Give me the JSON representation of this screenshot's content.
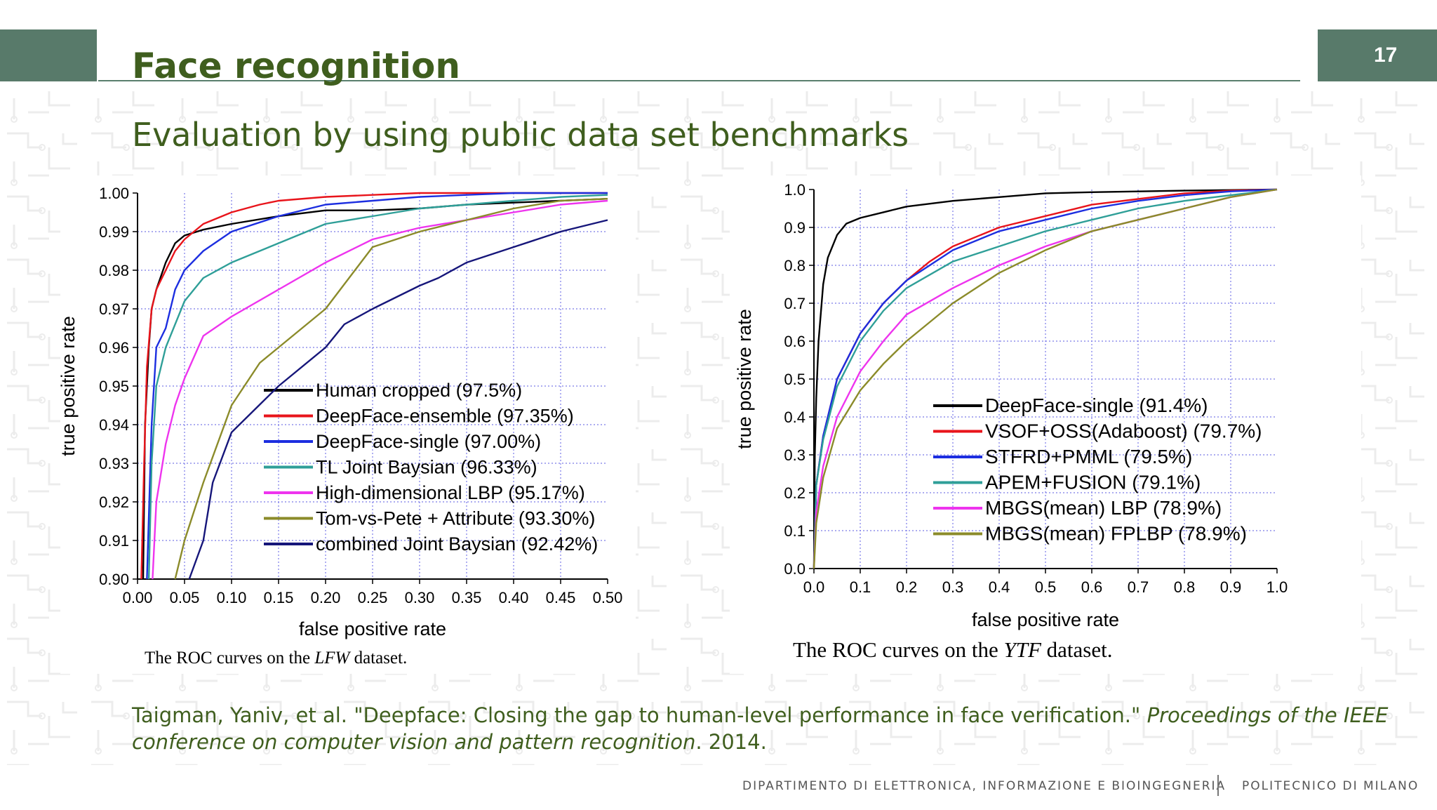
{
  "page": {
    "title": "Face recognition",
    "slide_number": "17",
    "subtitle": "Evaluation by using public data set benchmarks",
    "reference": {
      "plain": "Taigman, Yaniv, et al. \"Deepface: Closing the gap to human-level performance in face verification.\" ",
      "italic": "Proceedings of the IEEE conference on computer vision and pattern recognition",
      "tail": ". 2014."
    },
    "footer_left": "DIPARTIMENTO DI ELETTRONICA, INFORMAZIONE E BIOINGEGNERIA",
    "footer_right": "POLITECNICO DI MILANO",
    "colors": {
      "accent": "#587a6a",
      "text": "#3f5e1e"
    }
  },
  "chart_data": [
    {
      "type": "line",
      "caption_pre": "The ROC curves on the ",
      "caption_italic": "LFW",
      "caption_post": " dataset.",
      "xlabel": "false positive rate",
      "ylabel": "true positive rate",
      "xlim": [
        0,
        0.5
      ],
      "ylim": [
        0.9,
        1.0
      ],
      "xticks": [
        "0.00",
        "0.05",
        "0.10",
        "0.15",
        "0.20",
        "0.25",
        "0.30",
        "0.35",
        "0.40",
        "0.45",
        "0.50"
      ],
      "yticks": [
        "0.90",
        "0.91",
        "0.92",
        "0.93",
        "0.94",
        "0.95",
        "0.96",
        "0.97",
        "0.98",
        "0.99",
        "1.00"
      ],
      "grid": true,
      "legend_position": "bottom-right",
      "series": [
        {
          "name": "Human cropped (97.5%)",
          "color": "#000000",
          "points": [
            [
              0.006,
              0.9
            ],
            [
              0.008,
              0.94
            ],
            [
              0.012,
              0.96
            ],
            [
              0.015,
              0.97
            ],
            [
              0.02,
              0.975
            ],
            [
              0.03,
              0.982
            ],
            [
              0.04,
              0.987
            ],
            [
              0.05,
              0.989
            ],
            [
              0.07,
              0.9905
            ],
            [
              0.1,
              0.992
            ],
            [
              0.15,
              0.994
            ],
            [
              0.2,
              0.9955
            ],
            [
              0.25,
              0.9955
            ],
            [
              0.3,
              0.996
            ],
            [
              0.35,
              0.997
            ],
            [
              0.4,
              0.9975
            ],
            [
              0.45,
              0.998
            ],
            [
              0.5,
              0.9985
            ]
          ]
        },
        {
          "name": "DeepFace-ensemble (97.35%)",
          "color": "#e8141b",
          "points": [
            [
              0.004,
              0.9
            ],
            [
              0.007,
              0.93
            ],
            [
              0.01,
              0.955
            ],
            [
              0.015,
              0.97
            ],
            [
              0.02,
              0.975
            ],
            [
              0.03,
              0.98
            ],
            [
              0.04,
              0.985
            ],
            [
              0.05,
              0.988
            ],
            [
              0.07,
              0.992
            ],
            [
              0.1,
              0.995
            ],
            [
              0.13,
              0.997
            ],
            [
              0.15,
              0.998
            ],
            [
              0.2,
              0.999
            ],
            [
              0.25,
              0.9995
            ],
            [
              0.3,
              1.0
            ],
            [
              0.5,
              1.0
            ]
          ]
        },
        {
          "name": "DeepFace-single (97.00%)",
          "color": "#1c2ee0",
          "points": [
            [
              0.01,
              0.9
            ],
            [
              0.015,
              0.94
            ],
            [
              0.02,
              0.96
            ],
            [
              0.03,
              0.965
            ],
            [
              0.04,
              0.975
            ],
            [
              0.05,
              0.98
            ],
            [
              0.07,
              0.985
            ],
            [
              0.1,
              0.99
            ],
            [
              0.15,
              0.994
            ],
            [
              0.2,
              0.997
            ],
            [
              0.25,
              0.998
            ],
            [
              0.3,
              0.999
            ],
            [
              0.35,
              0.9995
            ],
            [
              0.4,
              1.0
            ],
            [
              0.5,
              1.0
            ]
          ]
        },
        {
          "name": "TL Joint Baysian (96.33%)",
          "color": "#2f9f98",
          "points": [
            [
              0.012,
              0.9
            ],
            [
              0.015,
              0.93
            ],
            [
              0.02,
              0.95
            ],
            [
              0.03,
              0.96
            ],
            [
              0.05,
              0.972
            ],
            [
              0.07,
              0.978
            ],
            [
              0.1,
              0.982
            ],
            [
              0.15,
              0.987
            ],
            [
              0.2,
              0.992
            ],
            [
              0.25,
              0.994
            ],
            [
              0.3,
              0.996
            ],
            [
              0.35,
              0.997
            ],
            [
              0.4,
              0.998
            ],
            [
              0.45,
              0.999
            ],
            [
              0.5,
              0.9995
            ]
          ]
        },
        {
          "name": "High-dimensional LBP (95.17%)",
          "color": "#ee34ee",
          "points": [
            [
              0.016,
              0.9
            ],
            [
              0.02,
              0.92
            ],
            [
              0.03,
              0.935
            ],
            [
              0.04,
              0.945
            ],
            [
              0.05,
              0.952
            ],
            [
              0.07,
              0.963
            ],
            [
              0.1,
              0.968
            ],
            [
              0.15,
              0.975
            ],
            [
              0.2,
              0.982
            ],
            [
              0.25,
              0.988
            ],
            [
              0.3,
              0.991
            ],
            [
              0.35,
              0.993
            ],
            [
              0.4,
              0.995
            ],
            [
              0.45,
              0.997
            ],
            [
              0.5,
              0.998
            ]
          ]
        },
        {
          "name": "Tom-vs-Pete + Attribute (93.30%)",
          "color": "#8b8b2a",
          "points": [
            [
              0.04,
              0.9
            ],
            [
              0.05,
              0.91
            ],
            [
              0.07,
              0.925
            ],
            [
              0.1,
              0.945
            ],
            [
              0.13,
              0.956
            ],
            [
              0.15,
              0.96
            ],
            [
              0.2,
              0.97
            ],
            [
              0.25,
              0.986
            ],
            [
              0.3,
              0.99
            ],
            [
              0.35,
              0.993
            ],
            [
              0.4,
              0.996
            ],
            [
              0.45,
              0.998
            ],
            [
              0.5,
              0.9985
            ]
          ]
        },
        {
          "name": "combined Joint Baysian (92.42%)",
          "color": "#16167a",
          "points": [
            [
              0.055,
              0.9
            ],
            [
              0.07,
              0.91
            ],
            [
              0.08,
              0.925
            ],
            [
              0.1,
              0.938
            ],
            [
              0.15,
              0.95
            ],
            [
              0.2,
              0.96
            ],
            [
              0.22,
              0.966
            ],
            [
              0.25,
              0.97
            ],
            [
              0.3,
              0.976
            ],
            [
              0.32,
              0.978
            ],
            [
              0.35,
              0.982
            ],
            [
              0.4,
              0.986
            ],
            [
              0.45,
              0.99
            ],
            [
              0.5,
              0.993
            ]
          ]
        }
      ]
    },
    {
      "type": "line",
      "caption_pre": "The ROC curves on the ",
      "caption_italic": "YTF",
      "caption_post": " dataset.",
      "xlabel": "false positive rate",
      "ylabel": "true positive rate",
      "xlim": [
        0,
        1.0
      ],
      "ylim": [
        0,
        1.0
      ],
      "xticks": [
        "0.0",
        "0.1",
        "0.2",
        "0.3",
        "0.4",
        "0.5",
        "0.6",
        "0.7",
        "0.8",
        "0.9",
        "1.0"
      ],
      "yticks": [
        "0.0",
        "0.1",
        "0.2",
        "0.3",
        "0.4",
        "0.5",
        "0.6",
        "0.7",
        "0.8",
        "0.9",
        "1.0"
      ],
      "grid": true,
      "legend_position": "bottom-right",
      "series": [
        {
          "name": "DeepFace-single (91.4%)",
          "color": "#000000",
          "points": [
            [
              0,
              0
            ],
            [
              0.002,
              0.3
            ],
            [
              0.005,
              0.45
            ],
            [
              0.01,
              0.6
            ],
            [
              0.02,
              0.75
            ],
            [
              0.03,
              0.82
            ],
            [
              0.05,
              0.88
            ],
            [
              0.07,
              0.91
            ],
            [
              0.1,
              0.925
            ],
            [
              0.15,
              0.94
            ],
            [
              0.2,
              0.955
            ],
            [
              0.3,
              0.97
            ],
            [
              0.4,
              0.98
            ],
            [
              0.5,
              0.99
            ],
            [
              0.6,
              0.993
            ],
            [
              0.8,
              0.997
            ],
            [
              1.0,
              1.0
            ]
          ]
        },
        {
          "name": "VSOF+OSS(Adaboost) (79.7%)",
          "color": "#e8141b",
          "points": [
            [
              0,
              0
            ],
            [
              0.005,
              0.22
            ],
            [
              0.02,
              0.35
            ],
            [
              0.05,
              0.5
            ],
            [
              0.1,
              0.62
            ],
            [
              0.15,
              0.7
            ],
            [
              0.2,
              0.76
            ],
            [
              0.25,
              0.81
            ],
            [
              0.3,
              0.85
            ],
            [
              0.4,
              0.9
            ],
            [
              0.5,
              0.93
            ],
            [
              0.6,
              0.96
            ],
            [
              0.7,
              0.975
            ],
            [
              0.8,
              0.99
            ],
            [
              0.9,
              0.997
            ],
            [
              1.0,
              1.0
            ]
          ]
        },
        {
          "name": "STFRD+PMML (79.5%)",
          "color": "#1c2ee0",
          "points": [
            [
              0,
              0
            ],
            [
              0.005,
              0.22
            ],
            [
              0.02,
              0.35
            ],
            [
              0.05,
              0.5
            ],
            [
              0.1,
              0.62
            ],
            [
              0.15,
              0.7
            ],
            [
              0.2,
              0.76
            ],
            [
              0.25,
              0.8
            ],
            [
              0.3,
              0.84
            ],
            [
              0.4,
              0.89
            ],
            [
              0.5,
              0.92
            ],
            [
              0.6,
              0.95
            ],
            [
              0.7,
              0.97
            ],
            [
              0.8,
              0.985
            ],
            [
              0.9,
              0.995
            ],
            [
              1.0,
              1.0
            ]
          ]
        },
        {
          "name": "APEM+FUSION (79.1%)",
          "color": "#2f9f98",
          "points": [
            [
              0,
              0
            ],
            [
              0.005,
              0.22
            ],
            [
              0.02,
              0.34
            ],
            [
              0.05,
              0.48
            ],
            [
              0.1,
              0.6
            ],
            [
              0.15,
              0.68
            ],
            [
              0.2,
              0.74
            ],
            [
              0.3,
              0.81
            ],
            [
              0.4,
              0.85
            ],
            [
              0.5,
              0.89
            ],
            [
              0.6,
              0.92
            ],
            [
              0.7,
              0.95
            ],
            [
              0.8,
              0.97
            ],
            [
              0.9,
              0.985
            ],
            [
              1.0,
              1.0
            ]
          ]
        },
        {
          "name": "MBGS(mean) LBP (78.9%)",
          "color": "#ee34ee",
          "points": [
            [
              0,
              0
            ],
            [
              0.005,
              0.15
            ],
            [
              0.02,
              0.27
            ],
            [
              0.05,
              0.4
            ],
            [
              0.1,
              0.52
            ],
            [
              0.15,
              0.6
            ],
            [
              0.2,
              0.67
            ],
            [
              0.3,
              0.74
            ],
            [
              0.4,
              0.8
            ],
            [
              0.5,
              0.85
            ],
            [
              0.6,
              0.89
            ],
            [
              0.7,
              0.92
            ],
            [
              0.8,
              0.95
            ],
            [
              0.9,
              0.98
            ],
            [
              1.0,
              1.0
            ]
          ]
        },
        {
          "name": "MBGS(mean) FPLBP (78.9%)",
          "color": "#8b8b2a",
          "points": [
            [
              0,
              0
            ],
            [
              0.005,
              0.12
            ],
            [
              0.02,
              0.24
            ],
            [
              0.05,
              0.37
            ],
            [
              0.1,
              0.47
            ],
            [
              0.15,
              0.54
            ],
            [
              0.2,
              0.6
            ],
            [
              0.3,
              0.7
            ],
            [
              0.4,
              0.78
            ],
            [
              0.5,
              0.84
            ],
            [
              0.6,
              0.89
            ],
            [
              0.7,
              0.92
            ],
            [
              0.8,
              0.95
            ],
            [
              0.9,
              0.98
            ],
            [
              1.0,
              1.0
            ]
          ]
        }
      ]
    }
  ]
}
